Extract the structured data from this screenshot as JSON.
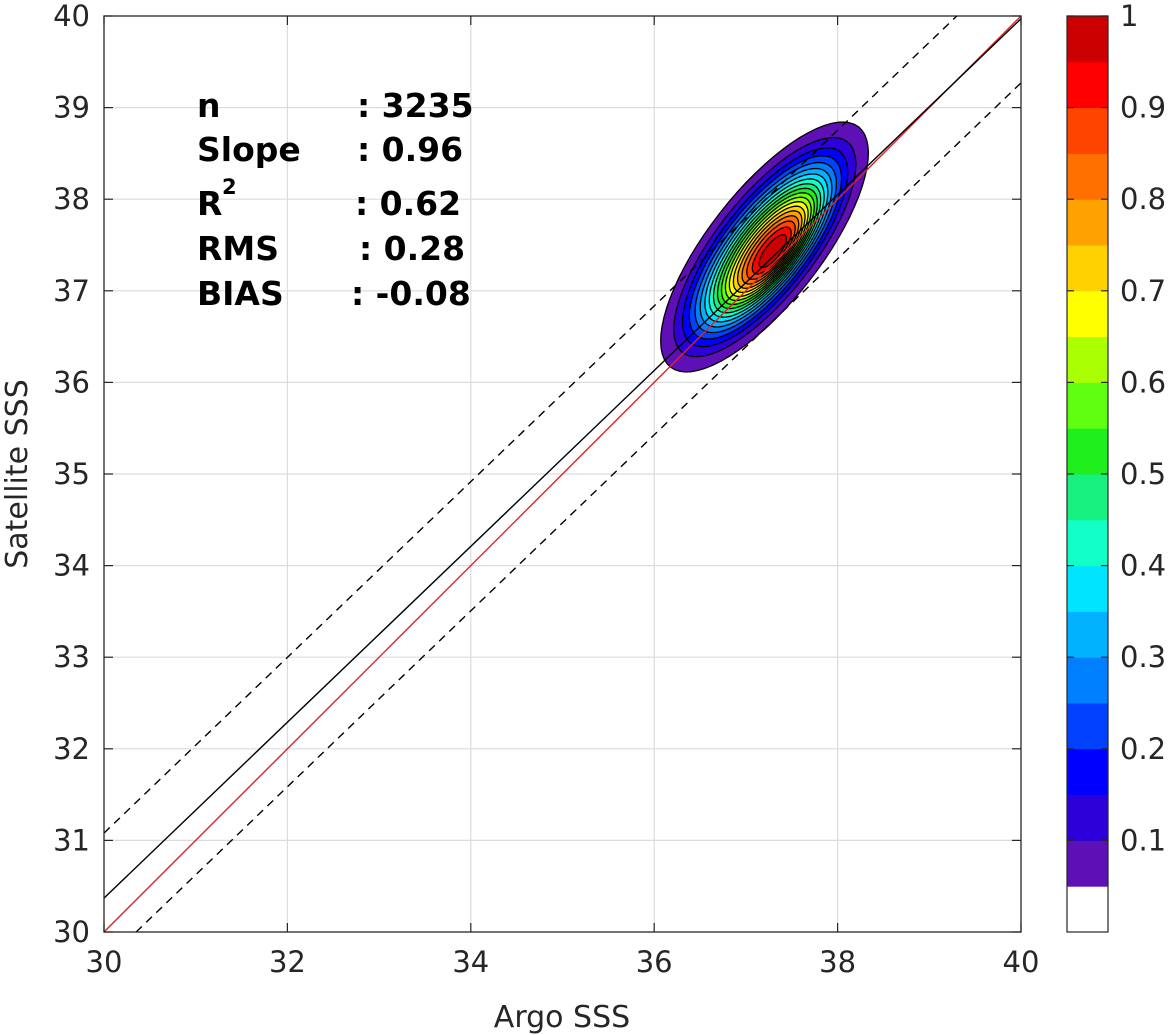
{
  "chart_data": {
    "type": "contour",
    "xlabel": "Argo SSS",
    "ylabel": "Satellite SSS",
    "xlim": [
      30,
      40
    ],
    "ylim": [
      30,
      40
    ],
    "x_ticks": [
      30,
      32,
      34,
      36,
      38,
      40
    ],
    "y_ticks": [
      30,
      31,
      32,
      33,
      34,
      35,
      36,
      37,
      38,
      39,
      40
    ],
    "grid": true,
    "statistics": [
      {
        "key": "n",
        "value": ": 3235"
      },
      {
        "key": "Slope",
        "value": ": 0.96"
      },
      {
        "key": "R",
        "sup": "2",
        "value": ": 0.62"
      },
      {
        "key": "RMS",
        "value": ": 0.28"
      },
      {
        "key": "BIAS",
        "value": ": -0.08"
      }
    ],
    "reference_lines": [
      {
        "name": "one-to-one",
        "style": "solid",
        "color": "#d62728",
        "points": [
          [
            30,
            30
          ],
          [
            40,
            40
          ]
        ]
      },
      {
        "name": "regression",
        "style": "solid",
        "color": "#000000",
        "points": [
          [
            30,
            30.37
          ],
          [
            40,
            39.97
          ]
        ]
      },
      {
        "name": "upper-bound",
        "style": "dashed",
        "color": "#000000",
        "points": [
          [
            30,
            31.08
          ],
          [
            39.3,
            40
          ]
        ]
      },
      {
        "name": "lower-bound",
        "style": "dashed",
        "color": "#000000",
        "points": [
          [
            30.35,
            30
          ],
          [
            40,
            39.27
          ]
        ]
      }
    ],
    "density": {
      "center": [
        37.32,
        37.42
      ],
      "sigma_major": 0.68,
      "sigma_minor": 0.25,
      "angle_deg": 52,
      "shift": [
        -0.12,
        0.06
      ],
      "max_value": 1
    },
    "colorbar": {
      "levels": [
        0,
        0.05,
        0.1,
        0.15,
        0.2,
        0.25,
        0.3,
        0.35,
        0.4,
        0.45,
        0.5,
        0.55,
        0.6,
        0.65,
        0.7,
        0.75,
        0.8,
        0.85,
        0.9,
        0.95,
        1.0
      ],
      "colors": [
        "#ffffff",
        "#5e0fb5",
        "#2d00d9",
        "#0000ff",
        "#0042ff",
        "#0080ff",
        "#00b2ff",
        "#00e5ff",
        "#12ffc8",
        "#18f080",
        "#1ef01e",
        "#60ff10",
        "#aaff00",
        "#ffff00",
        "#ffd100",
        "#ffa100",
        "#ff7000",
        "#ff4400",
        "#ff0000",
        "#cc0000",
        "#8b0000"
      ],
      "ticks": [
        0.1,
        0.2,
        0.3,
        0.4,
        0.5,
        0.6,
        0.7,
        0.8,
        0.9,
        1
      ],
      "tick_labels": [
        "0.1",
        "0.2",
        "0.3",
        "0.4",
        "0.5",
        "0.6",
        "0.7",
        "0.8",
        "0.9",
        "1"
      ]
    }
  }
}
